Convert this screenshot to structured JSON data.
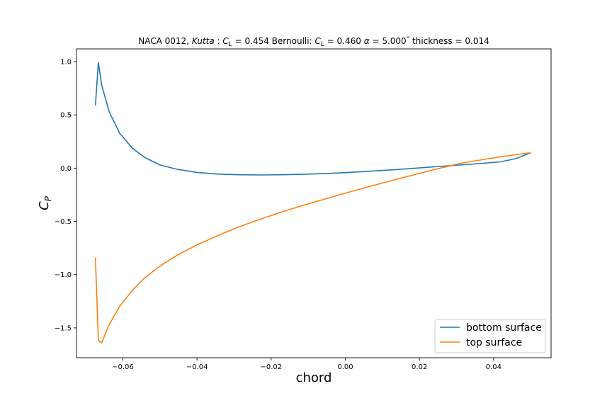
{
  "chart_data": {
    "type": "line",
    "title": "NACA 0012, Kutta : C_L = 0.454   Bernoulli: C_L = 0.460   α = 5.000 °  thickness = 0.014",
    "title_parts": {
      "prefix": "NACA 0012, ",
      "kutta": "Kutta",
      "kutta_eq": " : ",
      "cl1_sym": "C",
      "cl1_sub": "L",
      "cl1_val": " = 0.454",
      "bern": "   Bernoulli: ",
      "cl2_sym": "C",
      "cl2_sub": "L",
      "cl2_val": " = 0.460",
      "alpha_sym": "α",
      "alpha_val": " = 5.000",
      "degree": "°",
      "thickness": " thickness = 0.014"
    },
    "xlabel": "chord",
    "ylabel": {
      "symbol": "C",
      "sub": "P"
    },
    "xlim": [
      -0.0725,
      0.0555
    ],
    "ylim": [
      -1.78,
      1.12
    ],
    "xticks": [
      -0.06,
      -0.04,
      -0.02,
      0.0,
      0.02,
      0.04
    ],
    "xtick_labels": [
      "−0.06",
      "−0.04",
      "−0.02",
      "0.00",
      "0.02",
      "0.04"
    ],
    "yticks": [
      -1.5,
      -1.0,
      -0.5,
      0.0,
      0.5,
      1.0
    ],
    "ytick_labels": [
      "−1.5",
      "−1.0",
      "−0.5",
      "0.0",
      "0.5",
      "1.0"
    ],
    "grid": false,
    "legend_placement": "lower-right",
    "series": [
      {
        "name": "bottom surface",
        "color": "#1f77b4",
        "x": [
          -0.0674,
          -0.0666,
          -0.0657,
          -0.0637,
          -0.0609,
          -0.0575,
          -0.0541,
          -0.05,
          -0.0455,
          -0.04,
          -0.0345,
          -0.029,
          -0.023,
          -0.017,
          -0.011,
          -0.005,
          0.001,
          0.007,
          0.013,
          0.019,
          0.025,
          0.031,
          0.037,
          0.042,
          0.046,
          0.05
        ],
        "y": [
          0.59,
          0.99,
          0.78,
          0.53,
          0.33,
          0.19,
          0.1,
          0.03,
          -0.01,
          -0.04,
          -0.055,
          -0.062,
          -0.064,
          -0.062,
          -0.057,
          -0.05,
          -0.04,
          -0.028,
          -0.015,
          0.0,
          0.015,
          0.03,
          0.045,
          0.06,
          0.09,
          0.145
        ]
      },
      {
        "name": "top surface",
        "color": "#ff7f0e",
        "x": [
          -0.0674,
          -0.0666,
          -0.0657,
          -0.0637,
          -0.0609,
          -0.0575,
          -0.0541,
          -0.05,
          -0.0455,
          -0.04,
          -0.0345,
          -0.029,
          -0.023,
          -0.017,
          -0.011,
          -0.005,
          0.001,
          0.007,
          0.013,
          0.019,
          0.025,
          0.031,
          0.037,
          0.042,
          0.046,
          0.05
        ],
        "y": [
          -0.84,
          -1.62,
          -1.64,
          -1.47,
          -1.3,
          -1.15,
          -1.03,
          -0.92,
          -0.82,
          -0.72,
          -0.635,
          -0.555,
          -0.48,
          -0.41,
          -0.345,
          -0.285,
          -0.225,
          -0.168,
          -0.112,
          -0.058,
          -0.005,
          0.045,
          0.08,
          0.108,
          0.126,
          0.145
        ]
      }
    ]
  }
}
